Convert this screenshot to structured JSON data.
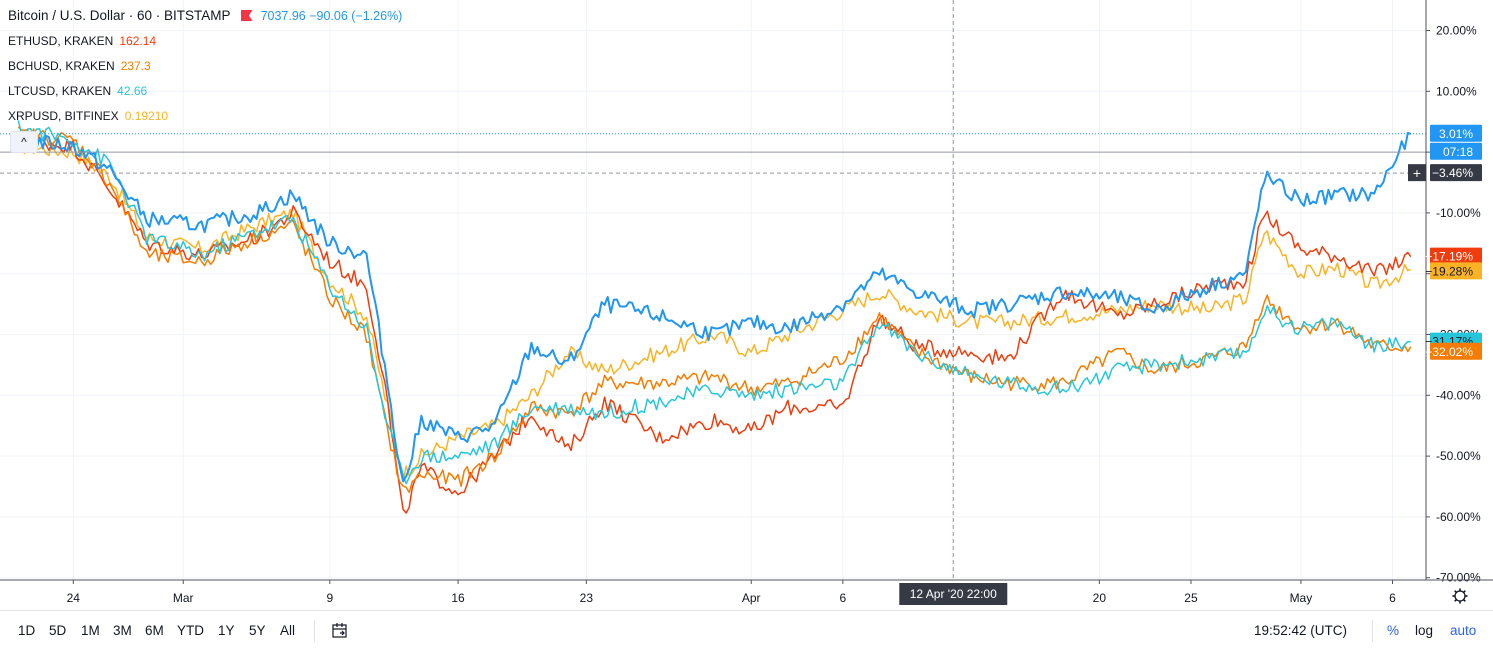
{
  "legend": {
    "main_symbol": "Bitcoin / U.S. Dollar · 60 · BITSTAMP",
    "main_value": "7037.96 −90.06 (−1.26%)",
    "main_color": "#2196f3",
    "compare": [
      {
        "label": "ETHUSD, KRAKEN",
        "value": "162.14",
        "color": "#f23c0c"
      },
      {
        "label": "BCHUSD, KRAKEN",
        "value": "237.3",
        "color": "#f57c00"
      },
      {
        "label": "LTCUSD, KRAKEN",
        "value": "42.66",
        "color": "#26c6da"
      },
      {
        "label": "XRPUSD, BITFINEX",
        "value": "0.19210",
        "color": "#fbb325"
      }
    ]
  },
  "collapse_icon": "chevron-up-icon",
  "axis_badges": {
    "btc": "3.01%",
    "countdown": "07:18",
    "crosshair": "−3.46%",
    "eth": "−17.19%",
    "xrp": "−19.28%",
    "ltc": "−31.17%",
    "bch": "−32.02%"
  },
  "crosshair_time": "12 Apr '20   22:00",
  "toolbar": {
    "timeframes": [
      "1D",
      "5D",
      "1M",
      "3M",
      "6M",
      "YTD",
      "1Y",
      "5Y",
      "All"
    ],
    "calendar_icon": "calendar-icon",
    "clock": "19:52:42 (UTC)",
    "percent": "%",
    "log": "log",
    "auto": "auto"
  },
  "chart_data": {
    "type": "line",
    "y_unit": "%",
    "ylim": [
      -70,
      25
    ],
    "y_ticks": [
      "20.00%",
      "10.00%",
      "0.00%",
      "-10.00%",
      "-20.00%",
      "-30.00%",
      "-40.00%",
      "-50.00%",
      "-60.00%",
      "-70.00%"
    ],
    "x_ticks": [
      "24",
      "Mar",
      "9",
      "16",
      "23",
      "Apr",
      "6",
      "12 Apr '20",
      "20",
      "25",
      "May",
      "6"
    ],
    "grid": true,
    "series": [
      {
        "name": "XRPUSD, BITFINEX",
        "color": "#fbb325",
        "x": [
          "2020-02-21",
          "2020-02-24",
          "2020-02-26",
          "2020-02-28",
          "2020-03-02",
          "2020-03-05",
          "2020-03-07",
          "2020-03-09",
          "2020-03-11",
          "2020-03-12",
          "2020-03-13",
          "2020-03-14",
          "2020-03-16",
          "2020-03-18",
          "2020-03-20",
          "2020-03-22",
          "2020-03-24",
          "2020-03-27",
          "2020-03-30",
          "2020-04-01",
          "2020-04-03",
          "2020-04-06",
          "2020-04-08",
          "2020-04-10",
          "2020-04-13",
          "2020-04-15",
          "2020-04-18",
          "2020-04-21",
          "2020-04-23",
          "2020-04-26",
          "2020-04-28",
          "2020-04-29",
          "2020-05-01",
          "2020-05-03",
          "2020-05-05",
          "2020-05-07"
        ],
        "values": [
          1,
          0,
          -4,
          -14,
          -16,
          -12,
          -10,
          -21,
          -27,
          -40,
          -53,
          -50,
          -47,
          -45,
          -40,
          -33,
          -36,
          -33,
          -30,
          -33,
          -30,
          -26,
          -23,
          -26,
          -28,
          -28,
          -27,
          -26,
          -25,
          -26,
          -24,
          -13,
          -20,
          -19,
          -22,
          -19.3
        ]
      },
      {
        "name": "ETHUSD, KRAKEN",
        "color": "#f23c0c",
        "x": [
          "2020-02-21",
          "2020-02-24",
          "2020-02-26",
          "2020-02-28",
          "2020-03-02",
          "2020-03-05",
          "2020-03-07",
          "2020-03-09",
          "2020-03-11",
          "2020-03-12",
          "2020-03-13",
          "2020-03-14",
          "2020-03-16",
          "2020-03-18",
          "2020-03-20",
          "2020-03-22",
          "2020-03-24",
          "2020-03-27",
          "2020-03-30",
          "2020-04-01",
          "2020-04-03",
          "2020-04-06",
          "2020-04-08",
          "2020-04-10",
          "2020-04-13",
          "2020-04-15",
          "2020-04-18",
          "2020-04-21",
          "2020-04-23",
          "2020-04-26",
          "2020-04-28",
          "2020-04-29",
          "2020-05-01",
          "2020-05-03",
          "2020-05-05",
          "2020-05-07"
        ],
        "values": [
          2,
          1,
          -6,
          -15,
          -17,
          -14,
          -10,
          -18,
          -22,
          -38,
          -60,
          -52,
          -56,
          -50,
          -43,
          -49,
          -41,
          -47,
          -44,
          -46,
          -42,
          -42,
          -27,
          -32,
          -33,
          -34,
          -23,
          -27,
          -25,
          -22,
          -21,
          -10,
          -16,
          -17,
          -20,
          -17.2
        ]
      },
      {
        "name": "BCHUSD, KRAKEN",
        "color": "#f57c00",
        "x": [
          "2020-02-21",
          "2020-02-24",
          "2020-02-26",
          "2020-02-28",
          "2020-03-02",
          "2020-03-05",
          "2020-03-07",
          "2020-03-09",
          "2020-03-11",
          "2020-03-12",
          "2020-03-13",
          "2020-03-14",
          "2020-03-16",
          "2020-03-18",
          "2020-03-20",
          "2020-03-22",
          "2020-03-24",
          "2020-03-27",
          "2020-03-30",
          "2020-04-01",
          "2020-04-03",
          "2020-04-06",
          "2020-04-08",
          "2020-04-10",
          "2020-04-13",
          "2020-04-15",
          "2020-04-18",
          "2020-04-21",
          "2020-04-23",
          "2020-04-26",
          "2020-04-28",
          "2020-04-29",
          "2020-05-01",
          "2020-05-03",
          "2020-05-05",
          "2020-05-07"
        ],
        "values": [
          3,
          2,
          -5,
          -17,
          -18,
          -14,
          -12,
          -24,
          -30,
          -44,
          -56,
          -53,
          -54,
          -50,
          -42,
          -43,
          -38,
          -38,
          -37,
          -39,
          -38,
          -34,
          -27,
          -33,
          -37,
          -38,
          -38,
          -33,
          -36,
          -34,
          -32,
          -24,
          -29,
          -28,
          -32,
          -32
        ]
      },
      {
        "name": "LTCUSD, KRAKEN",
        "color": "#26c6da",
        "x": [
          "2020-02-21",
          "2020-02-24",
          "2020-02-26",
          "2020-02-28",
          "2020-03-02",
          "2020-03-05",
          "2020-03-07",
          "2020-03-09",
          "2020-03-11",
          "2020-03-12",
          "2020-03-13",
          "2020-03-14",
          "2020-03-16",
          "2020-03-18",
          "2020-03-20",
          "2020-03-22",
          "2020-03-24",
          "2020-03-27",
          "2020-03-30",
          "2020-04-01",
          "2020-04-03",
          "2020-04-06",
          "2020-04-08",
          "2020-04-10",
          "2020-04-13",
          "2020-04-15",
          "2020-04-18",
          "2020-04-21",
          "2020-04-23",
          "2020-04-26",
          "2020-04-28",
          "2020-04-29",
          "2020-05-01",
          "2020-05-03",
          "2020-05-05",
          "2020-05-07"
        ],
        "values": [
          4,
          2,
          -2,
          -14,
          -17,
          -13,
          -11,
          -22,
          -29,
          -43,
          -54,
          -50,
          -50,
          -48,
          -42,
          -42,
          -43,
          -41,
          -39,
          -40,
          -39,
          -38,
          -28,
          -33,
          -37,
          -38,
          -39,
          -36,
          -35,
          -34,
          -33,
          -26,
          -29,
          -28,
          -32,
          -31.2
        ]
      },
      {
        "name": "Bitcoin / U.S. Dollar · 60 · BITSTAMP",
        "color": "#2196f3",
        "x": [
          "2020-02-21",
          "2020-02-24",
          "2020-02-26",
          "2020-02-28",
          "2020-03-02",
          "2020-03-05",
          "2020-03-07",
          "2020-03-09",
          "2020-03-11",
          "2020-03-12",
          "2020-03-13",
          "2020-03-14",
          "2020-03-16",
          "2020-03-18",
          "2020-03-20",
          "2020-03-22",
          "2020-03-24",
          "2020-03-27",
          "2020-03-30",
          "2020-04-01",
          "2020-04-03",
          "2020-04-06",
          "2020-04-08",
          "2020-04-10",
          "2020-04-13",
          "2020-04-15",
          "2020-04-18",
          "2020-04-21",
          "2020-04-23",
          "2020-04-26",
          "2020-04-28",
          "2020-04-29",
          "2020-05-01",
          "2020-05-03",
          "2020-05-05",
          "2020-05-07"
        ],
        "values": [
          2,
          1,
          -3,
          -11,
          -12,
          -10,
          -7,
          -15,
          -17,
          -35,
          -55,
          -44,
          -47,
          -45,
          -32,
          -35,
          -25,
          -27,
          -30,
          -28,
          -29,
          -25,
          -20,
          -23,
          -26,
          -25,
          -23,
          -24,
          -26,
          -22,
          -20,
          -4,
          -8,
          -7,
          -7,
          3
        ]
      }
    ]
  }
}
